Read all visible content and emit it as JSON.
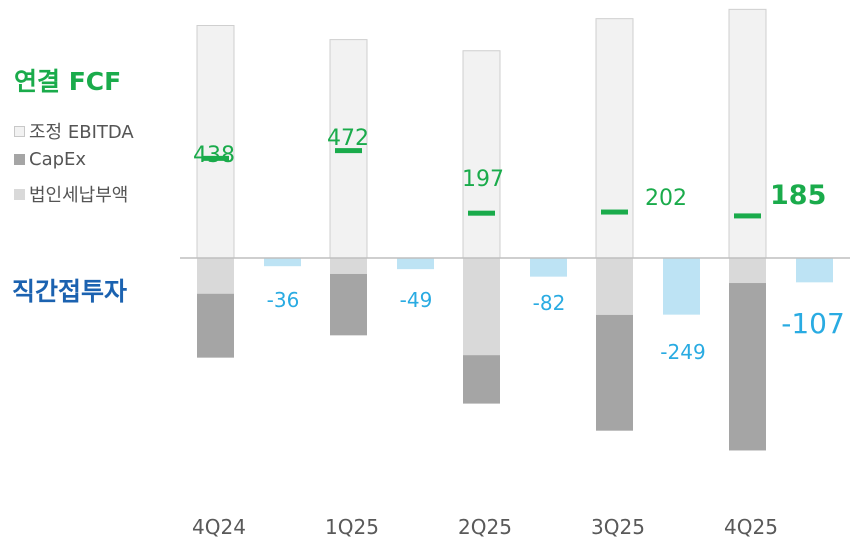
{
  "legend": {
    "title": "연결 FCF",
    "items": [
      {
        "label": "조정 EBITDA",
        "color": "#f2f2f2",
        "border": "#c8c8c8"
      },
      {
        "label": "CapEx",
        "color": "#a5a5a5",
        "border": "#a5a5a5"
      },
      {
        "label": "법인세납부액",
        "color": "#d9d9d9",
        "border": "#d9d9d9"
      }
    ]
  },
  "side_label": "직간접투자",
  "colors": {
    "fcf": "#1aab4b",
    "invest": "#29abe2",
    "invest_bar": "#bde3f4",
    "ebitda": "#f2f2f2",
    "ebitda_border": "#cfcfcf",
    "capex": "#a5a5a5",
    "tax": "#d9d9d9",
    "axis": "#bfbfbf",
    "tick": "#595959"
  },
  "chart_data": {
    "type": "bar",
    "categories": [
      "4Q24",
      "1Q25",
      "2Q25",
      "3Q25",
      "4Q25"
    ],
    "series": [
      {
        "name": "조정 EBITDA",
        "values": [
          1022,
          960,
          911,
          1052,
          1093
        ]
      },
      {
        "name": "법인세납부액",
        "values": [
          -157,
          -70,
          -427,
          -250,
          -110
        ]
      },
      {
        "name": "CapEx",
        "values": [
          -281,
          -270,
          -213,
          -509,
          -736
        ]
      },
      {
        "name": "연결 FCF",
        "values": [
          438,
          472,
          197,
          202,
          185
        ]
      },
      {
        "name": "직간접투자",
        "values": [
          -36,
          -49,
          -82,
          -249,
          -107
        ]
      }
    ],
    "fcf_labels": [
      "438",
      "472",
      "197",
      "202",
      "185"
    ],
    "invest_labels": [
      "-36",
      "-49",
      "-82",
      "-249",
      "-107"
    ],
    "ylim": [
      -850,
      1100
    ]
  }
}
